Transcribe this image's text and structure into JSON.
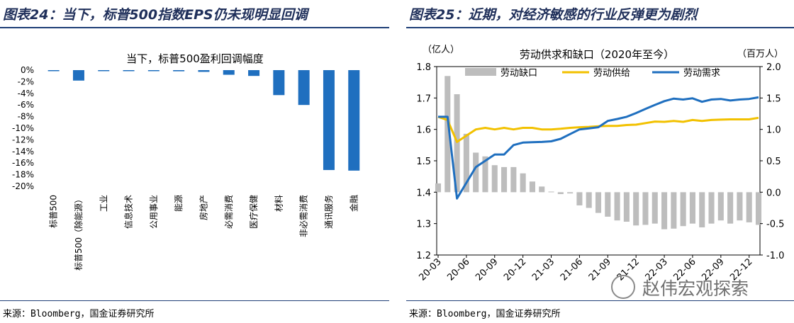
{
  "left_figure": {
    "header": "图表24：当下，标普500指数EPS仍未现明显回调",
    "source": "来源：Bloomberg，国金证券研究所"
  },
  "right_figure": {
    "header": "图表25：近期，对经济敏感的行业反弹更为剧烈",
    "source": "来源：Bloomberg，国金证券研究所"
  },
  "watermark": {
    "text": "赵伟宏观探索",
    "icon": "wechat-logo-icon"
  },
  "chart_data": [
    {
      "type": "bar",
      "title": "当下，标普500盈利回调幅度",
      "xlabel": "",
      "ylabel": "",
      "ylim": [
        -20,
        0
      ],
      "yticks": [
        "0%",
        "-2%",
        "-4%",
        "-6%",
        "-8%",
        "-10%",
        "-12%",
        "-14%",
        "-16%",
        "-18%",
        "-20%"
      ],
      "y_tick_values": [
        0,
        -2,
        -4,
        -6,
        -8,
        -10,
        -12,
        -14,
        -16,
        -18,
        -20
      ],
      "categories": [
        "标普500",
        "标普500（除能源）",
        "工业",
        "信息技术",
        "公用事业",
        "能源",
        "房地产",
        "必需消费",
        "医疗保健",
        "材料",
        "非必需消费",
        "通讯服务",
        "金融"
      ],
      "values": [
        0,
        -1.8,
        0,
        0,
        0,
        -0.2,
        -0.3,
        -0.8,
        -1.0,
        -4.3,
        -6.0,
        -17.2,
        -17.3
      ],
      "colors": {
        "bar": "#1f6fbf"
      },
      "grid": false,
      "legend": "none"
    },
    {
      "type": "bar+line",
      "title": "劳动供求和缺口（2020年至今）",
      "y_left_label": "（亿人）",
      "y_right_label": "（百万人）",
      "ylim_left": [
        1.2,
        1.8
      ],
      "ylim_right": [
        -1.0,
        2.0
      ],
      "yticks_left": [
        "1.2",
        "1.3",
        "1.4",
        "1.5",
        "1.6",
        "1.7",
        "1.8"
      ],
      "yticks_left_values": [
        1.2,
        1.3,
        1.4,
        1.5,
        1.6,
        1.7,
        1.8
      ],
      "yticks_right": [
        "-1.0",
        "-0.5",
        "0.0",
        "0.5",
        "1.0",
        "1.5",
        "2.0"
      ],
      "yticks_right_values": [
        -1.0,
        -0.5,
        0.0,
        0.5,
        1.0,
        1.5,
        2.0
      ],
      "x_tick_labels": [
        "20-03",
        "20-06",
        "20-09",
        "20-12",
        "21-03",
        "21-06",
        "21-09",
        "21-12",
        "22-03",
        "22-06",
        "22-09",
        "22-12"
      ],
      "x_tick_months": [
        0,
        3,
        6,
        9,
        12,
        15,
        18,
        21,
        24,
        27,
        30,
        33
      ],
      "x_start": "2020-03",
      "legend": "top",
      "grid": false,
      "series": [
        {
          "name": "劳动缺口",
          "kind": "bar",
          "axis": "right",
          "color": "#bdbdbd",
          "values": [
            0.14,
            1.85,
            1.56,
            0.93,
            0.63,
            0.57,
            0.43,
            0.4,
            0.4,
            0.3,
            0.17,
            0.09,
            0.01,
            -0.03,
            -0.02,
            -0.21,
            -0.25,
            -0.33,
            -0.39,
            -0.45,
            -0.47,
            -0.53,
            -0.52,
            -0.5,
            -0.59,
            -0.58,
            -0.54,
            -0.5,
            -0.56,
            -0.5,
            -0.45,
            -0.5,
            -0.45,
            -0.48,
            -0.52
          ]
        },
        {
          "name": "劳动供给",
          "kind": "line",
          "axis": "left",
          "color": "#f2c100",
          "values": [
            1.64,
            1.63,
            1.56,
            1.58,
            1.6,
            1.605,
            1.6,
            1.605,
            1.6,
            1.605,
            1.605,
            1.6,
            1.6,
            1.602,
            1.605,
            1.607,
            1.608,
            1.61,
            1.611,
            1.611,
            1.614,
            1.615,
            1.62,
            1.625,
            1.624,
            1.627,
            1.624,
            1.63,
            1.627,
            1.63,
            1.631,
            1.632,
            1.632,
            1.632,
            1.637
          ]
        },
        {
          "name": "劳动需求",
          "kind": "line",
          "axis": "left",
          "color": "#1f6fbf",
          "values": [
            1.64,
            1.64,
            1.38,
            1.43,
            1.48,
            1.5,
            1.52,
            1.52,
            1.55,
            1.558,
            1.559,
            1.56,
            1.562,
            1.57,
            1.585,
            1.6,
            1.603,
            1.607,
            1.627,
            1.633,
            1.64,
            1.652,
            1.665,
            1.678,
            1.69,
            1.698,
            1.695,
            1.699,
            1.688,
            1.695,
            1.697,
            1.692,
            1.695,
            1.697,
            1.702
          ]
        }
      ]
    }
  ]
}
